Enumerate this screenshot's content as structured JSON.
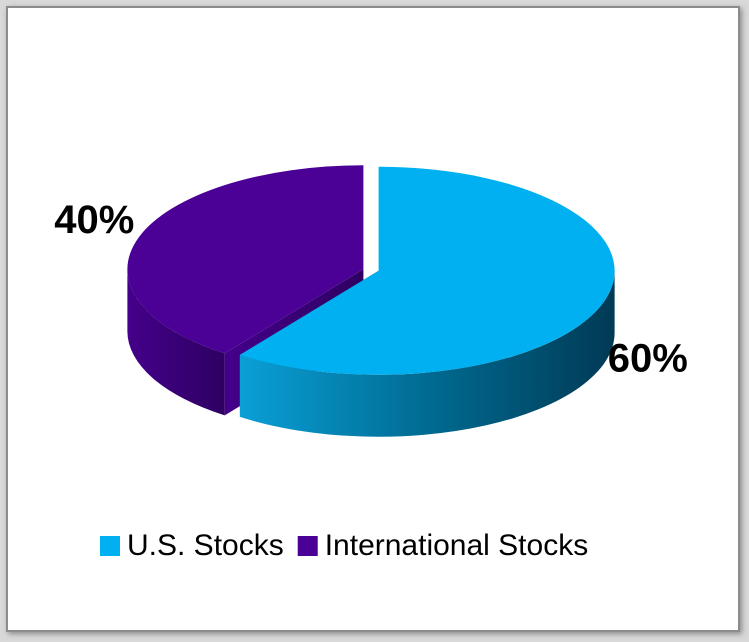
{
  "chart_data": {
    "type": "pie",
    "categories": [
      "U.S. Stocks",
      "International Stocks"
    ],
    "values": [
      60,
      40
    ],
    "value_labels": [
      "60%",
      "40%"
    ],
    "colors": [
      "#00b0f0",
      "#4b0096"
    ],
    "legend": "bottom"
  }
}
